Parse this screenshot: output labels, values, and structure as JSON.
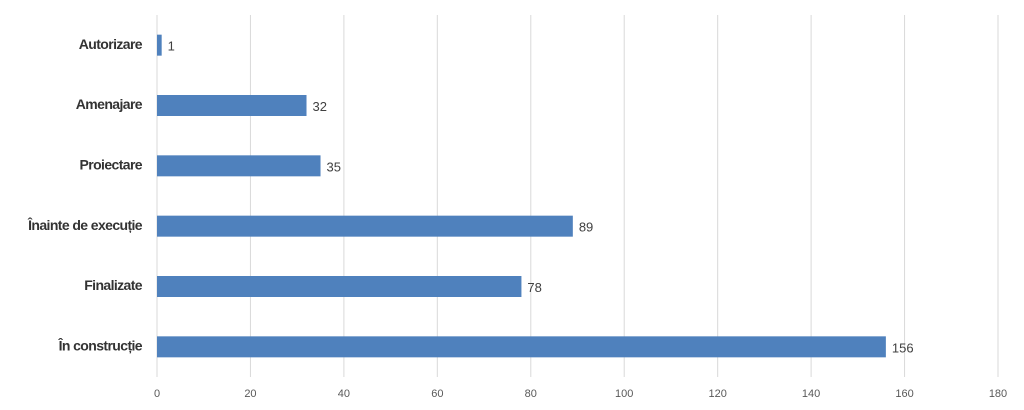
{
  "chart_data": {
    "type": "bar",
    "orientation": "horizontal",
    "categories": [
      "Autorizare",
      "Amenajare",
      "Proiectare",
      "Înainte de execuție",
      "Finalizate",
      "În construcție"
    ],
    "values": [
      1,
      32,
      35,
      89,
      78,
      156
    ],
    "color": "#4f81bd",
    "xlim": [
      0,
      180
    ],
    "xticks": [
      0,
      20,
      40,
      60,
      80,
      100,
      120,
      140,
      160,
      180
    ],
    "grid": true,
    "data_labels": true
  }
}
